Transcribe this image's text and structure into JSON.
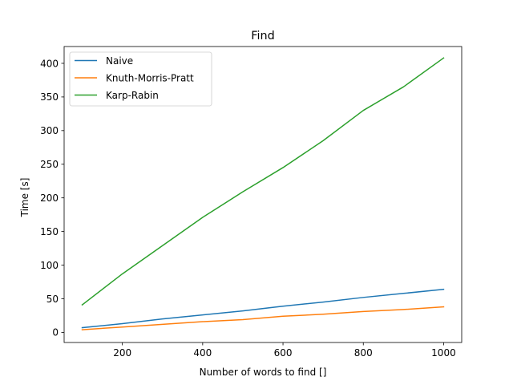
{
  "chart_data": {
    "type": "line",
    "title": "Find",
    "xlabel": "Number of words to find []",
    "ylabel": "Time [s]",
    "xlim": [
      55,
      1045
    ],
    "ylim": [
      -15,
      425
    ],
    "xticks": [
      200,
      400,
      600,
      800,
      1000
    ],
    "yticks": [
      0,
      50,
      100,
      150,
      200,
      250,
      300,
      350,
      400
    ],
    "grid": false,
    "legend_position": "top-left",
    "x": [
      100,
      200,
      300,
      400,
      500,
      600,
      700,
      800,
      900,
      1000
    ],
    "series": [
      {
        "name": "Naive",
        "color": "#1f77b4",
        "values": [
          7,
          13,
          20,
          26,
          32,
          39,
          45,
          52,
          58,
          64
        ]
      },
      {
        "name": "Knuth-Morris-Pratt",
        "color": "#ff7f0e",
        "values": [
          4,
          8,
          12,
          16,
          19,
          24,
          27,
          31,
          34,
          38
        ]
      },
      {
        "name": "Karp-Rabin",
        "color": "#2ca02c",
        "values": [
          41,
          87,
          129,
          171,
          209,
          245,
          285,
          330,
          365,
          408
        ]
      }
    ]
  }
}
